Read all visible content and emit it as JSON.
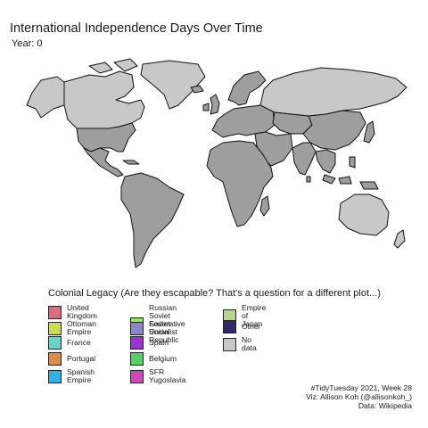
{
  "title": "International Independence Days Over Time",
  "subtitle": "Year: 0",
  "legend": {
    "title": "Colonial Legacy (Are they escapable? That's a question for a different plot...)",
    "items": [
      {
        "label": "United Kingdom",
        "color": "#d96b83"
      },
      {
        "label": "Ottoman Empire",
        "color": "#cddc4c"
      },
      {
        "label": "France",
        "color": "#6cd3c8"
      },
      {
        "label": "Portugal",
        "color": "#dd8a4a"
      },
      {
        "label": "Spanish Empire",
        "color": "#31b2e6"
      },
      {
        "label": "Russian Soviet Federative\nSocialist Republic",
        "color": "#88f155"
      },
      {
        "label": "Soviet Union",
        "color": "#8a86c9"
      },
      {
        "label": "Spain",
        "color": "#a030d6"
      },
      {
        "label": "Belgium",
        "color": "#4fd46a"
      },
      {
        "label": "SFR Yugoslavia",
        "color": "#cf49b7"
      },
      {
        "label": "Empire of Japan",
        "color": "#b8d68e"
      },
      {
        "label": "Other",
        "color": "#32276d"
      },
      {
        "label": "No data",
        "color": "#c8c8c8"
      }
    ]
  },
  "caption": {
    "line1": "#TidyTuesday 2021, Week 28",
    "line2": "Viz: Allison Koh (@allisonkoh_)",
    "line3": "Data: Wikipedia"
  },
  "map": {
    "independent_color": "#9e9e9e",
    "no_data_color": "#c8c8c8",
    "border_color": "#111111"
  }
}
